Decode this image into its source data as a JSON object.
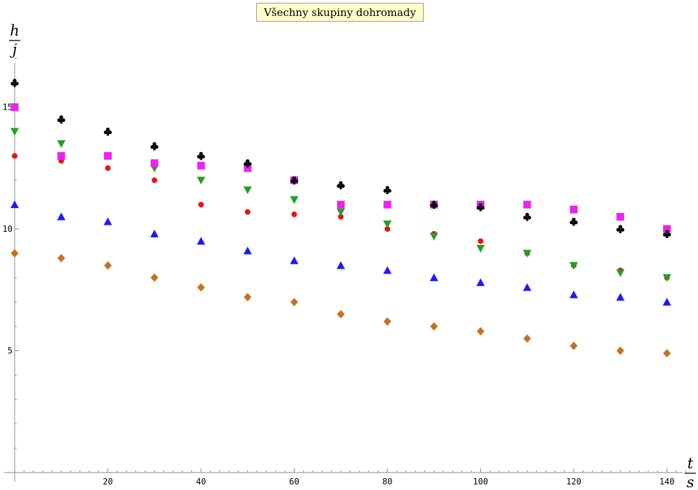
{
  "chart_data": {
    "type": "scatter",
    "title": "Všechny skupiny dohromady",
    "ylabel": {
      "numerator": "h",
      "denominator": "j"
    },
    "xlabel": {
      "numerator": "t",
      "denominator": "s"
    },
    "xlim": [
      0,
      145
    ],
    "ylim": [
      0,
      17.5
    ],
    "x_ticks": [
      20,
      40,
      60,
      80,
      100,
      120,
      140
    ],
    "y_ticks": [
      5,
      10,
      15
    ],
    "x": [
      0,
      10,
      20,
      30,
      40,
      50,
      60,
      70,
      80,
      90,
      100,
      110,
      120,
      130,
      140
    ],
    "grid": false,
    "series": [
      {
        "marker": "diamond",
        "color": "#c87020",
        "values": [
          9.0,
          8.8,
          8.5,
          8.0,
          7.6,
          7.2,
          7.0,
          6.5,
          6.2,
          6.0,
          5.8,
          5.5,
          5.2,
          5.0,
          4.9
        ]
      },
      {
        "marker": "triangle-up",
        "color": "#1a1aff",
        "values": [
          11.0,
          10.5,
          10.3,
          9.8,
          9.5,
          9.1,
          8.7,
          8.5,
          8.3,
          8.0,
          7.8,
          7.6,
          7.3,
          7.2,
          7.0
        ]
      },
      {
        "marker": "circle",
        "color": "#ee1111",
        "values": [
          13.0,
          12.8,
          12.5,
          12.0,
          11.0,
          10.7,
          10.6,
          10.5,
          10.0,
          9.8,
          9.5,
          9.0,
          8.5,
          8.3,
          8.0
        ]
      },
      {
        "marker": "triangle-down",
        "color": "#22a022",
        "values": [
          14.0,
          13.5,
          13.0,
          12.5,
          12.0,
          11.6,
          11.2,
          10.7,
          10.2,
          9.7,
          9.2,
          9.0,
          8.5,
          8.2,
          8.0
        ]
      },
      {
        "marker": "square",
        "color": "#ee22ee",
        "values": [
          15.0,
          13.0,
          13.0,
          12.7,
          12.6,
          12.5,
          12.0,
          11.0,
          11.0,
          11.0,
          11.0,
          11.0,
          10.8,
          10.5,
          10.0
        ]
      },
      {
        "marker": "club",
        "color": "#000000",
        "values": [
          16.0,
          14.5,
          14.0,
          13.4,
          13.0,
          12.7,
          12.0,
          11.8,
          11.6,
          11.0,
          10.9,
          10.5,
          10.3,
          10.0,
          9.8
        ]
      }
    ]
  }
}
